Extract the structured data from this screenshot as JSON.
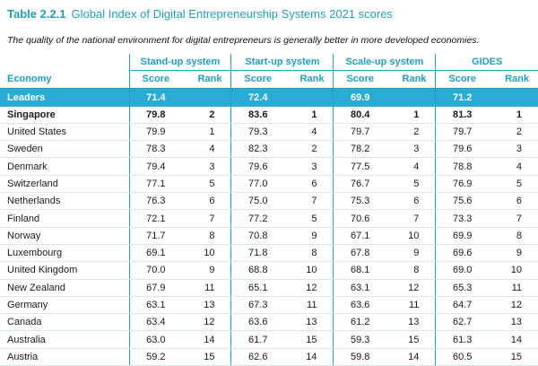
{
  "title": {
    "label": "Table 2.2.1",
    "text": "Global Index of Digital Entrepreneurship Systems 2021 scores"
  },
  "subtitle": "The quality of the national environment for digital entrepreneurs is generally better in more developed economies.",
  "groups": [
    "Stand-up system",
    "Start-up system",
    "Scale-up system",
    "GIDES"
  ],
  "columns": {
    "economy": "Economy",
    "score": "Score",
    "rank": "Rank"
  },
  "leaders": {
    "label": "Leaders",
    "scores": [
      "71.4",
      "72.4",
      "69.9",
      "71.2"
    ]
  },
  "rows": [
    {
      "economy": "Singapore",
      "values": [
        "79.8",
        "2",
        "83.6",
        "1",
        "80.4",
        "1",
        "81.3",
        "1"
      ],
      "bold": true
    },
    {
      "economy": "United States",
      "values": [
        "79.9",
        "1",
        "79.3",
        "4",
        "79.7",
        "2",
        "79.7",
        "2"
      ]
    },
    {
      "economy": "Sweden",
      "values": [
        "78.3",
        "4",
        "82.3",
        "2",
        "78.2",
        "3",
        "79.6",
        "3"
      ]
    },
    {
      "economy": "Denmark",
      "values": [
        "79.4",
        "3",
        "79.6",
        "3",
        "77.5",
        "4",
        "78.8",
        "4"
      ]
    },
    {
      "economy": "Switzerland",
      "values": [
        "77.1",
        "5",
        "77.0",
        "6",
        "76.7",
        "5",
        "76.9",
        "5"
      ]
    },
    {
      "economy": "Netherlands",
      "values": [
        "76.3",
        "6",
        "75.0",
        "7",
        "75.3",
        "6",
        "75.6",
        "6"
      ]
    },
    {
      "economy": "Finland",
      "values": [
        "72.1",
        "7",
        "77.2",
        "5",
        "70.6",
        "7",
        "73.3",
        "7"
      ]
    },
    {
      "economy": "Norway",
      "values": [
        "71.7",
        "8",
        "70.8",
        "9",
        "67.1",
        "10",
        "69.9",
        "8"
      ]
    },
    {
      "economy": "Luxembourg",
      "values": [
        "69.1",
        "10",
        "71.8",
        "8",
        "67.8",
        "9",
        "69.6",
        "9"
      ]
    },
    {
      "economy": "United Kingdom",
      "values": [
        "70.0",
        "9",
        "68.8",
        "10",
        "68.1",
        "8",
        "69.0",
        "10"
      ]
    },
    {
      "economy": "New Zealand",
      "values": [
        "67.9",
        "11",
        "65.1",
        "12",
        "63.1",
        "12",
        "65.3",
        "11"
      ]
    },
    {
      "economy": "Germany",
      "values": [
        "63.1",
        "13",
        "67.3",
        "11",
        "63.6",
        "11",
        "64.7",
        "12"
      ]
    },
    {
      "economy": "Canada",
      "values": [
        "63.4",
        "12",
        "63.6",
        "13",
        "61.2",
        "13",
        "62.7",
        "13"
      ]
    },
    {
      "economy": "Australia",
      "values": [
        "63.0",
        "14",
        "61.7",
        "15",
        "59.3",
        "15",
        "61.3",
        "14"
      ]
    },
    {
      "economy": "Austria",
      "values": [
        "59.2",
        "15",
        "62.6",
        "14",
        "59.8",
        "14",
        "60.5",
        "15"
      ]
    }
  ]
}
